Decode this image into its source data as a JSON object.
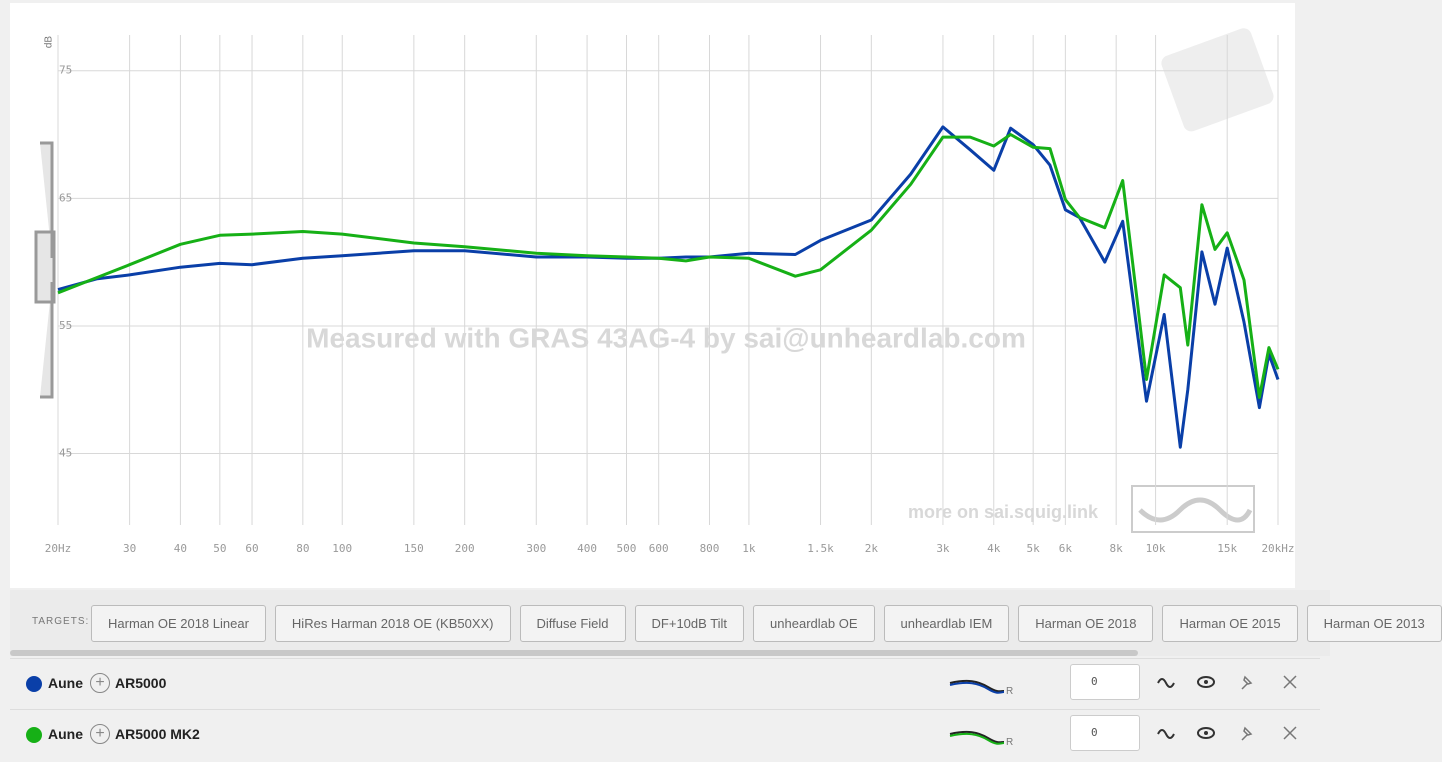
{
  "chart_data": {
    "type": "line",
    "y_label": "dB",
    "watermark": "Measured with GRAS 43AG-4 by sai@unheardlab.com",
    "footer_note": "more on sai.squig.link",
    "x": [
      20,
      25,
      30,
      40,
      50,
      60,
      80,
      100,
      150,
      200,
      300,
      400,
      500,
      600,
      700,
      800,
      1000,
      1300,
      1500,
      2000,
      2500,
      3000,
      3500,
      4000,
      4400,
      5000,
      5500,
      6000,
      6500,
      7500,
      8300,
      9000,
      9500,
      10500,
      11500,
      12000,
      13000,
      14000,
      15000,
      16500,
      18000,
      19000,
      20000
    ],
    "series": [
      {
        "name": "AR5000",
        "color": "#0a3fa8",
        "values": [
          57.85,
          58.7,
          59.0,
          59.6,
          59.9,
          59.8,
          60.3,
          60.5,
          60.9,
          60.9,
          60.4,
          60.4,
          60.3,
          60.3,
          60.4,
          60.4,
          60.7,
          60.6,
          61.7,
          63.3,
          66.9,
          70.6,
          68.8,
          67.2,
          70.5,
          69.2,
          67.6,
          64.1,
          63.5,
          60.0,
          63.2,
          54.7,
          49.1,
          55.9,
          45.5,
          50.0,
          60.8,
          56.7,
          61.1,
          55.3,
          48.6,
          52.8,
          50.8
        ]
      },
      {
        "name": "AR5000 MK2",
        "color": "#16b016",
        "values": [
          57.6,
          58.8,
          59.8,
          61.4,
          62.1,
          62.2,
          62.4,
          62.2,
          61.5,
          61.2,
          60.7,
          60.5,
          60.4,
          60.3,
          60.1,
          60.4,
          60.3,
          58.9,
          59.4,
          62.5,
          66.1,
          69.8,
          69.8,
          69.1,
          70.0,
          69.0,
          68.9,
          64.9,
          63.5,
          62.7,
          66.4,
          57.1,
          50.8,
          59.0,
          58.0,
          53.5,
          64.5,
          61.0,
          62.3,
          58.6,
          49.4,
          53.3,
          51.6
        ]
      }
    ],
    "xlim": [
      20,
      20000
    ],
    "log_x": true,
    "ylim": [
      39.4,
      77.8
    ],
    "yticks": [
      45,
      55,
      65,
      75
    ],
    "xticks": [
      {
        "value": 20,
        "label": "20Hz"
      },
      30,
      40,
      50,
      60,
      80,
      100,
      150,
      200,
      300,
      400,
      500,
      600,
      800,
      {
        "value": 1000,
        "label": "1k"
      },
      {
        "value": 1500,
        "label": "1.5k"
      },
      {
        "value": 2000,
        "label": "2k"
      },
      {
        "value": 3000,
        "label": "3k"
      },
      {
        "value": 4000,
        "label": "4k"
      },
      {
        "value": 5000,
        "label": "5k"
      },
      {
        "value": 6000,
        "label": "6k"
      },
      {
        "value": 8000,
        "label": "8k"
      },
      {
        "value": 10000,
        "label": "10k"
      },
      {
        "value": 15000,
        "label": "15k"
      },
      {
        "value": 20000,
        "label": "20kHz"
      }
    ],
    "grid": true
  },
  "targets": {
    "label": "TARGETS:",
    "items": [
      "Harman OE 2018 Linear",
      "HiRes Harman 2018 OE (KB50XX)",
      "Diffuse Field",
      "DF+10dB Tilt",
      "unheardlab OE",
      "unheardlab IEM",
      "Harman OE 2018",
      "Harman OE 2015",
      "Harman OE 2013"
    ]
  },
  "phones": [
    {
      "brand": "Aune",
      "model": "AR5000",
      "channel": "R",
      "offset": 0
    },
    {
      "brand": "Aune",
      "model": "AR5000 MK2",
      "channel": "R",
      "offset": 0
    }
  ]
}
